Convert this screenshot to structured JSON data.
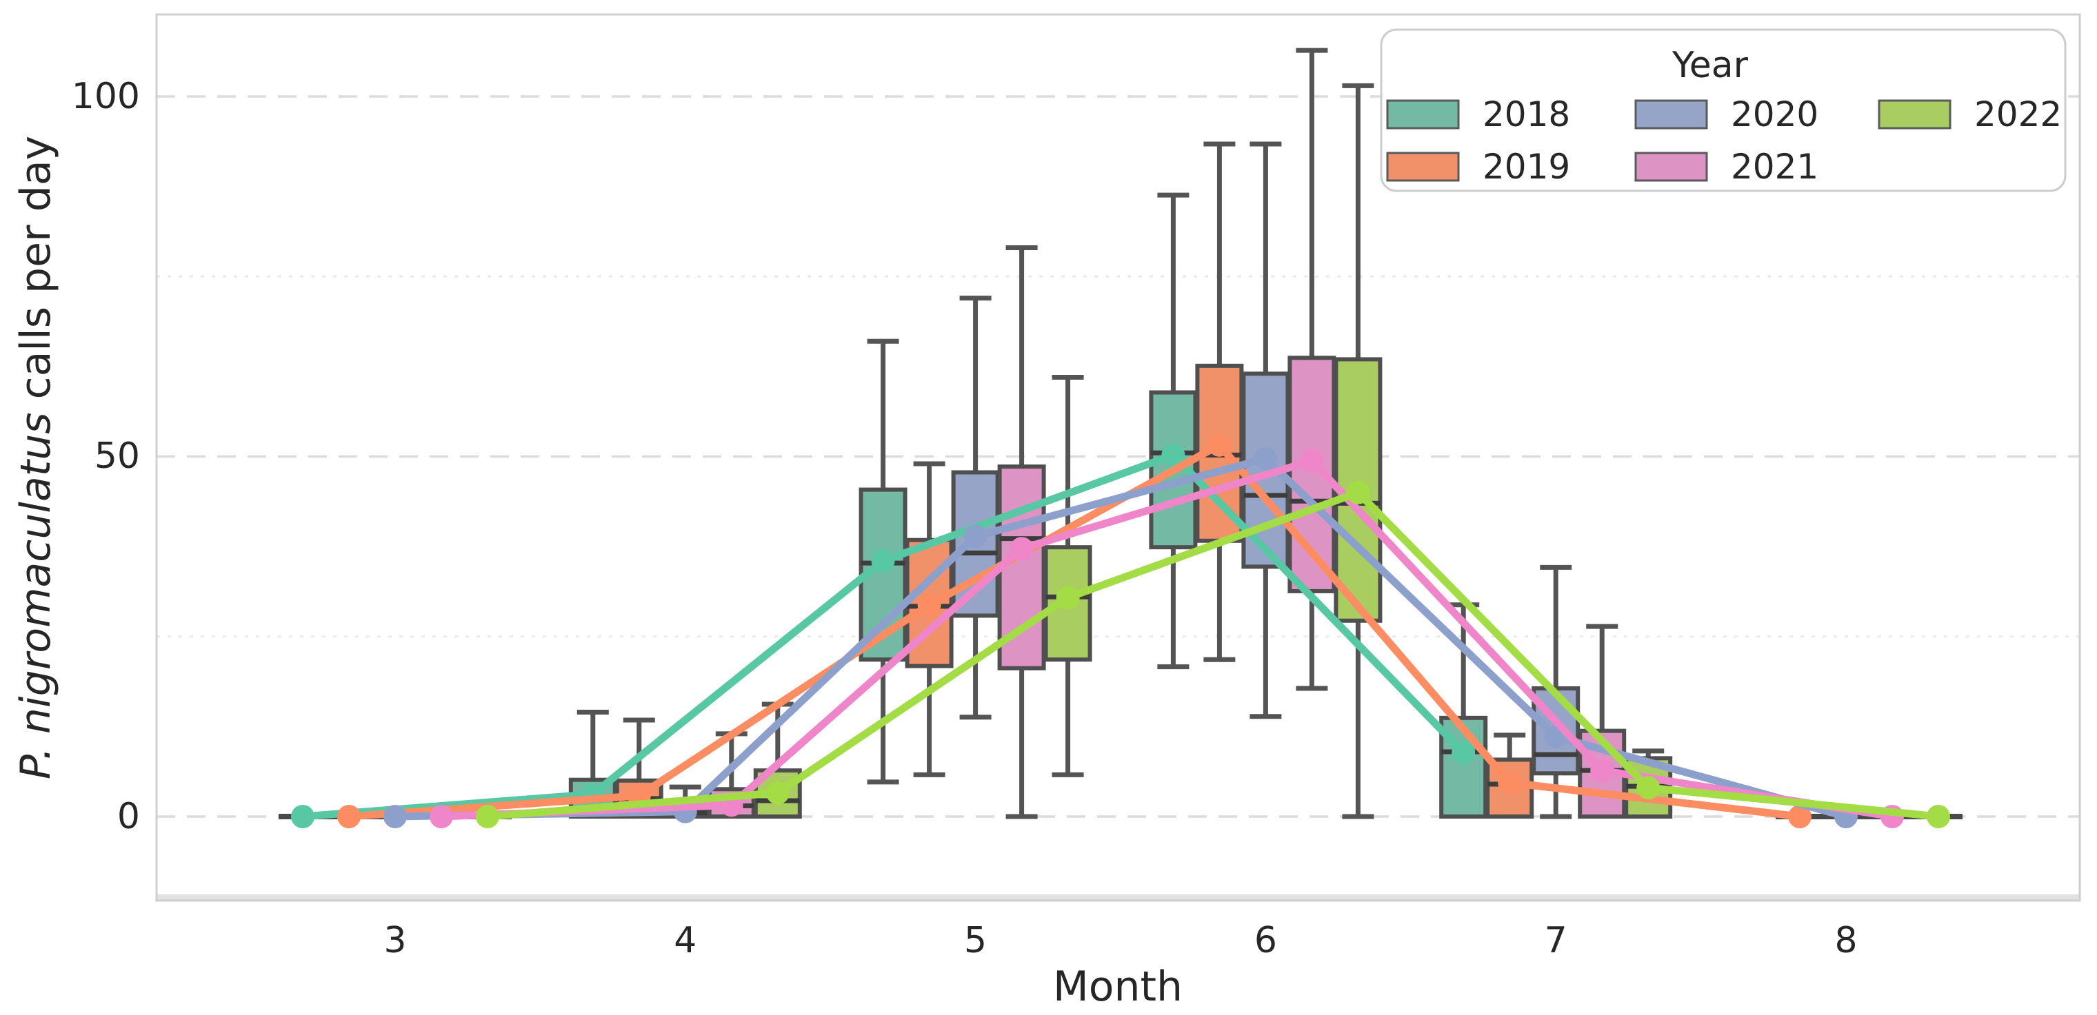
{
  "chart_data": {
    "type": "boxplot+line",
    "xlabel": "Month",
    "ylabel_italic": "P. nigromaculatus",
    "ylabel_rest": " calls per day",
    "legend_title": "Year",
    "x_tick_labels": [
      "3",
      "4",
      "5",
      "6",
      "7",
      "8"
    ],
    "y_tick_labels": [
      "0",
      "50",
      "100"
    ],
    "y_tick_values": [
      0,
      50,
      100
    ],
    "months": [
      3,
      4,
      5,
      6,
      7,
      8
    ],
    "ylim": [
      -11.5,
      111.5
    ],
    "grid": {
      "major": [
        0,
        50,
        100
      ],
      "minor": [
        25,
        75
      ],
      "grid_on": true,
      "legend_position": "upper right"
    },
    "series": [
      {
        "name": "2018",
        "box_color": "#74b9a4",
        "line_color": "#57c7a4",
        "boxes": [
          {
            "q1": 0,
            "med": 0,
            "q3": 0,
            "lo": 0,
            "hi": 0
          },
          {
            "q1": 0,
            "med": 2.5,
            "q3": 5.1,
            "lo": 0,
            "hi": 14.5
          },
          {
            "q1": 21.8,
            "med": 35.2,
            "q3": 45.4,
            "lo": 4.8,
            "hi": 66
          },
          {
            "q1": 37.4,
            "med": 50.5,
            "q3": 58.9,
            "lo": 20.8,
            "hi": 86.3
          },
          {
            "q1": 0,
            "med": 9,
            "q3": 13.7,
            "lo": 0,
            "hi": 29.4
          },
          null
        ],
        "means": [
          0,
          3.1,
          35.5,
          50.2,
          8.9,
          null
        ]
      },
      {
        "name": "2019",
        "box_color": "#f09169",
        "line_color": "#fc8d62",
        "boxes": [
          {
            "q1": 0,
            "med": 0,
            "q3": 0,
            "lo": 0,
            "hi": 0
          },
          {
            "q1": 0,
            "med": 2.5,
            "q3": 5.0,
            "lo": 0,
            "hi": 13.4
          },
          {
            "q1": 20.9,
            "med": 29.2,
            "q3": 38.4,
            "lo": 5.8,
            "hi": 49
          },
          {
            "q1": 38.3,
            "med": 50.2,
            "q3": 62.6,
            "lo": 21.8,
            "hi": 93.4
          },
          {
            "q1": 0,
            "med": 4.5,
            "q3": 7.9,
            "lo": 0,
            "hi": 11.3
          },
          {
            "q1": 0,
            "med": 0,
            "q3": 0,
            "lo": 0,
            "hi": 0
          }
        ],
        "means": [
          0,
          2.9,
          29.4,
          51.6,
          4.7,
          0
        ]
      },
      {
        "name": "2020",
        "box_color": "#96a4c8",
        "line_color": "#8da0cb",
        "boxes": [
          {
            "q1": 0,
            "med": 0,
            "q3": 0,
            "lo": 0,
            "hi": 0
          },
          {
            "q1": 0,
            "med": 0.5,
            "q3": 1.0,
            "lo": 0,
            "hi": 4.1
          },
          {
            "q1": 27.9,
            "med": 36.6,
            "q3": 47.8,
            "lo": 13.8,
            "hi": 72
          },
          {
            "q1": 34.7,
            "med": 44.6,
            "q3": 61.5,
            "lo": 13.9,
            "hi": 93.4
          },
          {
            "q1": 6.0,
            "med": 8.6,
            "q3": 17.8,
            "lo": 0,
            "hi": 34.6
          },
          {
            "q1": 0,
            "med": 0,
            "q3": 0,
            "lo": 0,
            "hi": 0
          }
        ],
        "means": [
          0,
          0.7,
          38.9,
          49.7,
          11.1,
          0
        ]
      },
      {
        "name": "2021",
        "box_color": "#dd94c4",
        "line_color": "#ee86c9",
        "boxes": [
          {
            "q1": 0,
            "med": 0,
            "q3": 0,
            "lo": 0,
            "hi": 0
          },
          {
            "q1": 0,
            "med": 1.5,
            "q3": 3.8,
            "lo": 0,
            "hi": 11.5
          },
          {
            "q1": 20.6,
            "med": 38.6,
            "q3": 48.6,
            "lo": 0,
            "hi": 79
          },
          {
            "q1": 31.3,
            "med": 43.8,
            "q3": 63.7,
            "lo": 17.8,
            "hi": 106.4
          },
          {
            "q1": 0,
            "med": 6.4,
            "q3": 11.9,
            "lo": 0,
            "hi": 26.4
          },
          {
            "q1": 0,
            "med": 0,
            "q3": 0,
            "lo": 0,
            "hi": 0
          }
        ],
        "means": [
          0,
          1.6,
          37.2,
          49.4,
          6.4,
          0
        ]
      },
      {
        "name": "2022",
        "box_color": "#aacd62",
        "line_color": "#a3dc45",
        "boxes": [
          {
            "q1": 0,
            "med": 0,
            "q3": 0,
            "lo": 0,
            "hi": 0
          },
          {
            "q1": 0,
            "med": 2.2,
            "q3": 6.4,
            "lo": 0,
            "hi": 15.6
          },
          {
            "q1": 21.8,
            "med": 30.5,
            "q3": 37.4,
            "lo": 5.8,
            "hi": 61
          },
          {
            "q1": 27.2,
            "med": 43.5,
            "q3": 63.5,
            "lo": 0,
            "hi": 101.5
          },
          {
            "q1": 0,
            "med": 4.2,
            "q3": 8.1,
            "lo": 0,
            "hi": 9.1
          },
          {
            "q1": 0,
            "med": 0,
            "q3": 0,
            "lo": 0,
            "hi": 0
          }
        ],
        "means": [
          0,
          3.3,
          30.4,
          45.0,
          4.0,
          0
        ]
      }
    ]
  }
}
